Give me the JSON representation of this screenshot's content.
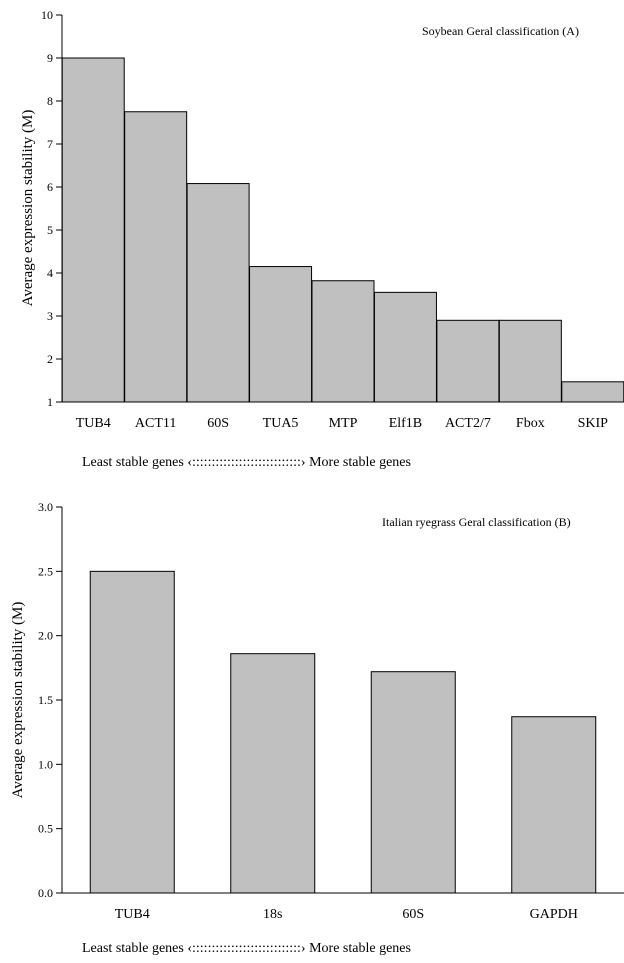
{
  "chart_data": [
    {
      "type": "bar",
      "title": "Soybean Geral classification (A)",
      "ylabel": "Average expression stability (M)",
      "xlabel": "Least stable genes ‹::::::::::::::::::::::::::::› More stable genes",
      "categories": [
        "TUB4",
        "ACT11",
        "60S",
        "TUA5",
        "MTP",
        "Elf1B",
        "ACT2/7",
        "Fbox",
        "SKIP"
      ],
      "values": [
        9.0,
        7.75,
        6.08,
        4.15,
        3.82,
        3.55,
        2.9,
        2.9,
        1.47
      ],
      "ylim": [
        1,
        10
      ],
      "yticks": [
        "1",
        "2",
        "3",
        "4",
        "5",
        "6",
        "7",
        "8",
        "9",
        "10"
      ],
      "bar_color": "#c0c0c0",
      "grid": false
    },
    {
      "type": "bar",
      "title": "Italian ryegrass Geral classification (B)",
      "ylabel": "Average expression stability (M)",
      "xlabel": "Least stable genes ‹::::::::::::::::::::::::::::› More stable genes",
      "categories": [
        "TUB4",
        "18s",
        "60S",
        "GAPDH"
      ],
      "values": [
        2.5,
        1.86,
        1.72,
        1.37
      ],
      "ylim": [
        0,
        3
      ],
      "yticks": [
        "0.0",
        "0.5",
        "1.0",
        "1.5",
        "2.0",
        "2.5",
        "3.0"
      ],
      "bar_color": "#c0c0c0",
      "grid": false
    }
  ]
}
